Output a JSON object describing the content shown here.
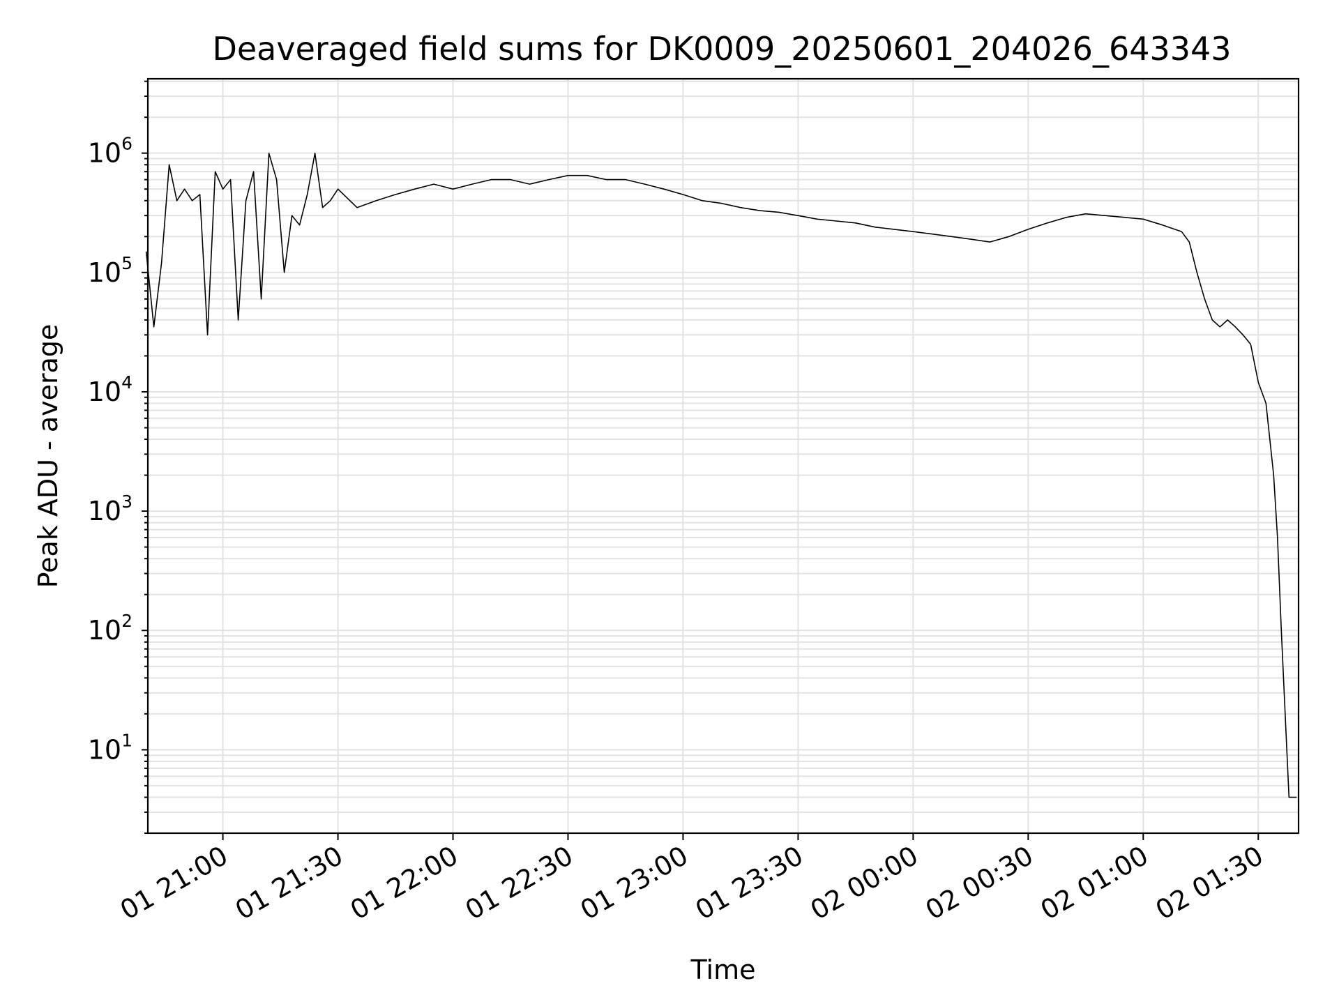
{
  "chart_data": {
    "type": "line",
    "title": "Deaveraged field sums for DK0009_20250601_204026_643343",
    "xlabel": "Time",
    "ylabel": "Peak ADU - average",
    "yscale": "log",
    "xlim": [
      "2025-06-01 20:40:26",
      "2025-06-02 01:40:30"
    ],
    "ylim": [
      2,
      4200000.0
    ],
    "grid": "major and minor",
    "line_color": "#000000",
    "x_ticks": [
      "01 21:00",
      "01 21:30",
      "01 22:00",
      "01 22:30",
      "01 23:00",
      "01 23:30",
      "02 00:00",
      "02 00:30",
      "02 01:00",
      "02 01:30"
    ],
    "y_ticks": [
      {
        "base": "10",
        "exp": "1"
      },
      {
        "base": "10",
        "exp": "2"
      },
      {
        "base": "10",
        "exp": "3"
      },
      {
        "base": "10",
        "exp": "4"
      },
      {
        "base": "10",
        "exp": "5"
      },
      {
        "base": "10",
        "exp": "6"
      }
    ],
    "series": [
      {
        "x": [
          "20:40",
          "20:42",
          "20:44",
          "20:46",
          "20:48",
          "20:50",
          "20:52",
          "20:54",
          "20:56",
          "20:58",
          "21:00",
          "21:02",
          "21:04",
          "21:06",
          "21:08",
          "21:10",
          "21:12",
          "21:14",
          "21:16",
          "21:18",
          "21:20",
          "21:22",
          "21:24",
          "21:26",
          "21:28",
          "21:30",
          "21:35",
          "21:40",
          "21:45",
          "21:50",
          "21:55",
          "22:00",
          "22:05",
          "22:10",
          "22:15",
          "22:20",
          "22:25",
          "22:30",
          "22:35",
          "22:40",
          "22:45",
          "22:50",
          "22:55",
          "23:00",
          "23:05",
          "23:10",
          "23:15",
          "23:20",
          "23:25",
          "23:30",
          "23:35",
          "23:40",
          "23:45",
          "23:50",
          "23:55",
          "00:00",
          "00:05",
          "00:10",
          "00:15",
          "00:20",
          "00:25",
          "00:30",
          "00:35",
          "00:40",
          "00:45",
          "00:50",
          "00:55",
          "01:00",
          "01:05",
          "01:10",
          "01:12",
          "01:14",
          "01:16",
          "01:18",
          "01:20",
          "01:22",
          "01:24",
          "01:26",
          "01:28",
          "01:30",
          "01:32",
          "01:33",
          "01:34",
          "01:35",
          "01:36",
          "01:37",
          "01:38",
          "01:39",
          "01:40"
        ],
        "values": [
          150000,
          35000,
          120000,
          800000,
          400000,
          500000,
          400000,
          450000,
          30000,
          700000,
          500000,
          600000,
          40000,
          400000,
          700000,
          60000,
          1000000,
          600000,
          100000,
          300000,
          250000,
          450000,
          1000000,
          350000,
          400000,
          500000,
          350000,
          400000,
          450000,
          500000,
          550000,
          500000,
          550000,
          600000,
          600000,
          550000,
          600000,
          650000,
          650000,
          600000,
          600000,
          550000,
          500000,
          450000,
          400000,
          380000,
          350000,
          330000,
          320000,
          300000,
          280000,
          270000,
          260000,
          240000,
          230000,
          220000,
          210000,
          200000,
          190000,
          180000,
          200000,
          230000,
          260000,
          290000,
          310000,
          300000,
          290000,
          280000,
          250000,
          220000,
          180000,
          100000,
          60000,
          40000,
          35000,
          40000,
          35000,
          30000,
          25000,
          12000,
          8000,
          4000,
          2000,
          600,
          100,
          20,
          4,
          4,
          4
        ]
      }
    ]
  }
}
